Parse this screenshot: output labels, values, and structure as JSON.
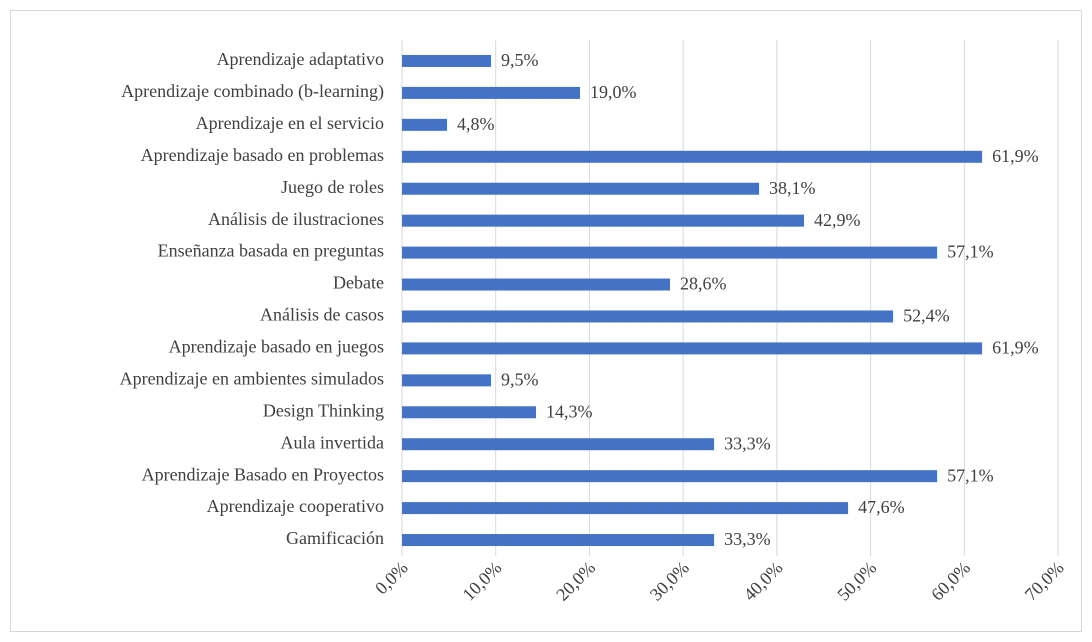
{
  "chart_data": {
    "type": "barh",
    "categories": [
      "Aprendizaje adaptativo",
      "Aprendizaje combinado (b-learning)",
      "Aprendizaje en el servicio",
      "Aprendizaje basado en problemas",
      "Juego de roles",
      "Análisis de ilustraciones",
      "Enseñanza basada en preguntas",
      "Debate",
      "Análisis de casos",
      "Aprendizaje basado en juegos",
      "Aprendizaje en ambientes simulados",
      "Design Thinking",
      "Aula invertida",
      "Aprendizaje Basado en Proyectos",
      "Aprendizaje cooperativo",
      "Gamificación"
    ],
    "values": [
      9.5,
      19.0,
      4.8,
      61.9,
      38.1,
      42.9,
      57.1,
      28.6,
      52.4,
      61.9,
      9.5,
      14.3,
      33.3,
      57.1,
      47.6,
      33.3
    ],
    "value_labels": [
      "9,5%",
      "19,0%",
      "4,8%",
      "61,9%",
      "38,1%",
      "42,9%",
      "57,1%",
      "28,6%",
      "52,4%",
      "61,9%",
      "9,5%",
      "14,3%",
      "33,3%",
      "57,1%",
      "47,6%",
      "33,3%"
    ],
    "color": "#4472c4",
    "xlim": [
      0,
      70
    ],
    "xticks": [
      {
        "value": 0,
        "label": "0,0%"
      },
      {
        "value": 10,
        "label": "10,0%"
      },
      {
        "value": 20,
        "label": "20,0%"
      },
      {
        "value": 30,
        "label": "30,0%"
      },
      {
        "value": 40,
        "label": "40,0%"
      },
      {
        "value": 50,
        "label": "50,0%"
      },
      {
        "value": 60,
        "label": "60,0%"
      },
      {
        "value": 70,
        "label": "70,0%"
      }
    ],
    "grid": true
  }
}
